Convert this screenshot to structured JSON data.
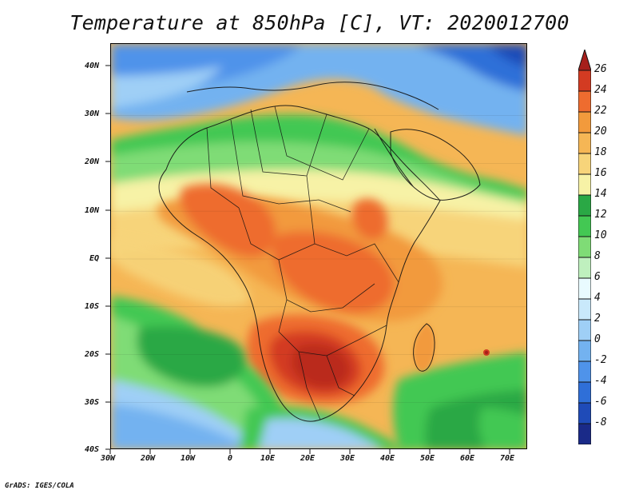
{
  "title": "Temperature at 850hPa [C], VT: 2020012700",
  "credit": "GrADS: IGES/COLA",
  "map": {
    "projection": "lat-lon",
    "lon_range": [
      -30,
      75
    ],
    "lat_range": [
      -40,
      45
    ],
    "lon_ticks": [
      "30W",
      "20W",
      "10W",
      "0",
      "10E",
      "20E",
      "30E",
      "40E",
      "50E",
      "60E",
      "70E"
    ],
    "lat_ticks": [
      "40N",
      "30N",
      "20N",
      "10N",
      "EQ",
      "10S",
      "20S",
      "30S",
      "40S"
    ]
  },
  "colorbar": {
    "labels": [
      "26",
      "24",
      "22",
      "20",
      "18",
      "16",
      "14",
      "12",
      "10",
      "8",
      "6",
      "4",
      "2",
      "0",
      "-2",
      "-4",
      "-6",
      "-8"
    ],
    "colors": {
      "c_-8": "#1a2a88",
      "c_-6": "#1f4bb8",
      "c_-4": "#2f6fd8",
      "c_-2": "#4f93ea",
      "c_0": "#73b2f0",
      "c_2": "#9fcff6",
      "c_4": "#c9e9fb",
      "c_6": "#e9fbff",
      "c_8": "#bff0be",
      "c_10": "#7fdc76",
      "c_12": "#43c853",
      "c_14": "#2aa845",
      "c_16": "#f7f2a6",
      "c_18": "#f7d47a",
      "c_20": "#f5b655",
      "c_22": "#f29a3c",
      "c_24": "#ee6c2f",
      "c_26": "#d33b22",
      "max": "#a61f1b",
      "min": "#d9d3ff"
    }
  }
}
